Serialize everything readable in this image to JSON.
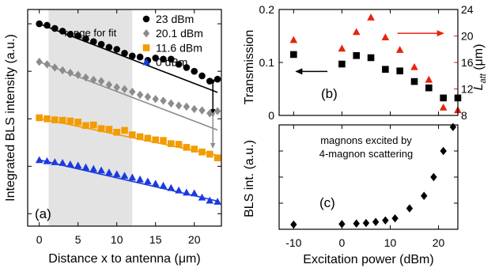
{
  "chart_data": [
    {
      "id": "a",
      "type": "scatter",
      "panel_label": "(a)",
      "xlabel": "Distance x to antenna (μm)",
      "ylabel": "Integrated BLS intensity (a.u.)",
      "y_scale": "log",
      "xlim": [
        -1.5,
        23.5
      ],
      "x_ticks": [
        0,
        5,
        10,
        15,
        20
      ],
      "y_ticks_labeled": false,
      "shaded_region": {
        "x": [
          1.2,
          12.0
        ],
        "label": "range for fit"
      },
      "legend_position": "top-right",
      "series": [
        {
          "name": "23 dBm",
          "marker": "circle",
          "color": "#000000",
          "fit_color": "#000000",
          "x": [
            0,
            1,
            2,
            3,
            4,
            5,
            6,
            7,
            8,
            9,
            10,
            11,
            12,
            13,
            14,
            15,
            16,
            17,
            18,
            19,
            20,
            21,
            22,
            23
          ],
          "y": [
            1.0,
            0.93,
            0.8,
            0.7,
            0.6,
            0.56,
            0.48,
            0.42,
            0.37,
            0.32,
            0.29,
            0.24,
            0.21,
            0.2,
            0.17,
            0.19,
            0.18,
            0.18,
            0.14,
            0.12,
            0.1,
            0.08,
            0.062,
            0.068
          ],
          "fit": {
            "x": [
              0,
              23
            ],
            "y": [
              1.0,
              0.036
            ]
          }
        },
        {
          "name": "20.1 dBm",
          "marker": "diamond",
          "color": "#8c8c8c",
          "fit_color": "#8c8c8c",
          "x": [
            0,
            1,
            2,
            3,
            4,
            5,
            6,
            7,
            8,
            9,
            10,
            11,
            12,
            13,
            14,
            15,
            16,
            17,
            18,
            19,
            20,
            21,
            22,
            23
          ],
          "y": [
            0.158,
            0.14,
            0.12,
            0.105,
            0.093,
            0.084,
            0.074,
            0.066,
            0.062,
            0.052,
            0.046,
            0.042,
            0.037,
            0.032,
            0.029,
            0.026,
            0.024,
            0.021,
            0.019,
            0.018,
            0.016,
            0.015,
            0.013,
            0.0145
          ],
          "fit": {
            "x": [
              0,
              23
            ],
            "y": [
              0.158,
              0.0058
            ]
          }
        },
        {
          "name": "11.6 dBm",
          "marker": "square",
          "color": "#f39c00",
          "fit_color": "#f39c00",
          "x": [
            0,
            1,
            2,
            3,
            4,
            5,
            6,
            7,
            8,
            9,
            10,
            11,
            12,
            13,
            14,
            15,
            16,
            17,
            18,
            19,
            20,
            21,
            22,
            23
          ],
          "y": [
            0.0105,
            0.01,
            0.0095,
            0.0093,
            0.009,
            0.0085,
            0.0072,
            0.0074,
            0.0062,
            0.006,
            0.0052,
            0.0057,
            0.0046,
            0.0042,
            0.0039,
            0.0036,
            0.0035,
            0.003,
            0.0029,
            0.0025,
            0.0023,
            0.002,
            0.0018,
            0.0015
          ],
          "fit": {
            "x": [
              0,
              23
            ],
            "y": [
              0.0102,
              0.0017
            ]
          }
        },
        {
          "name": "0 dBm",
          "marker": "triangle",
          "color": "#1a3adf",
          "fit_color": "#1a3adf",
          "x": [
            0,
            1,
            2,
            3,
            4,
            5,
            6,
            7,
            8,
            9,
            10,
            11,
            12,
            13,
            14,
            15,
            16,
            17,
            18,
            19,
            20,
            21,
            22,
            23
          ],
          "y": [
            0.00135,
            0.00128,
            0.00122,
            0.00118,
            0.0011,
            0.00104,
            0.00095,
            0.00088,
            0.00082,
            0.00074,
            0.00068,
            0.00063,
            0.00058,
            0.00053,
            0.00048,
            0.00043,
            0.00039,
            0.00035,
            0.00031,
            0.00028,
            0.00027,
            0.00022,
            0.00019,
            0.00018
          ],
          "fit": {
            "x": [
              0,
              23
            ],
            "y": [
              0.00136,
              0.000185
            ]
          }
        }
      ],
      "arrows": [
        {
          "x": 22.4,
          "y_from": 0.062,
          "y_to": 0.011,
          "color": "#000000"
        },
        {
          "x": 22.4,
          "y_from": 0.0125,
          "y_to": 0.0021,
          "color": "#8c8c8c"
        }
      ]
    },
    {
      "id": "b",
      "type": "scatter",
      "panel_label": "(b)",
      "xlim": [
        -13,
        24
      ],
      "ylim": [
        0,
        0.2
      ],
      "y_ticks": [
        0,
        0.1,
        0.2
      ],
      "ylabel": "Transmission",
      "y2label": "L_att (μm)",
      "y2label_main": "L",
      "y2label_sub": "att",
      "y2label_unit": " (μm)",
      "y2lim": [
        8,
        24
      ],
      "y2_ticks": [
        8,
        12,
        16,
        20,
        24
      ],
      "y2_color": "#e8230c",
      "series": [
        {
          "name": "Transmission",
          "axis": "left",
          "marker": "square",
          "color": "#000000",
          "x": [
            -10,
            0,
            3,
            6,
            9,
            12,
            15,
            18,
            21,
            24
          ],
          "y": [
            0.115,
            0.097,
            0.113,
            0.109,
            0.087,
            0.084,
            0.064,
            0.052,
            0.033,
            0.033
          ]
        },
        {
          "name": "L_att",
          "axis": "right",
          "marker": "triangle",
          "color": "#e8230c",
          "x": [
            -10,
            0,
            3,
            6,
            9,
            12,
            15,
            18,
            21,
            24
          ],
          "y": [
            19.4,
            18.1,
            20.6,
            22.8,
            19.8,
            17.9,
            15.3,
            13.4,
            9.2,
            8.8
          ]
        }
      ],
      "arrows": [
        {
          "direction": "left",
          "color": "#000000",
          "x_from": -3,
          "x_to": -9.5,
          "y": 0.083
        },
        {
          "direction": "right",
          "color": "#e8230c",
          "x_from": 11.5,
          "x_to": 21,
          "y": 0.155
        }
      ]
    },
    {
      "id": "c",
      "type": "scatter",
      "panel_label": "(c)",
      "xlabel": "Excitation power (dBm)",
      "ylabel": "BLS int. (a.u.)",
      "xlim": [
        -13,
        24
      ],
      "x_ticks": [
        -10,
        0,
        10,
        20
      ],
      "ylim": [
        0,
        1
      ],
      "y_ticks_labeled": false,
      "annotation": [
        "magnons excited by",
        "4-magnon scattering"
      ],
      "series": [
        {
          "name": "BLS int.",
          "marker": "diamond",
          "color": "#000000",
          "x": [
            -10,
            0,
            3,
            5,
            7,
            9,
            11,
            14,
            17,
            19,
            21,
            23
          ],
          "y": [
            0.045,
            0.05,
            0.055,
            0.06,
            0.07,
            0.085,
            0.105,
            0.2,
            0.32,
            0.5,
            0.75,
            0.98
          ]
        }
      ]
    }
  ]
}
